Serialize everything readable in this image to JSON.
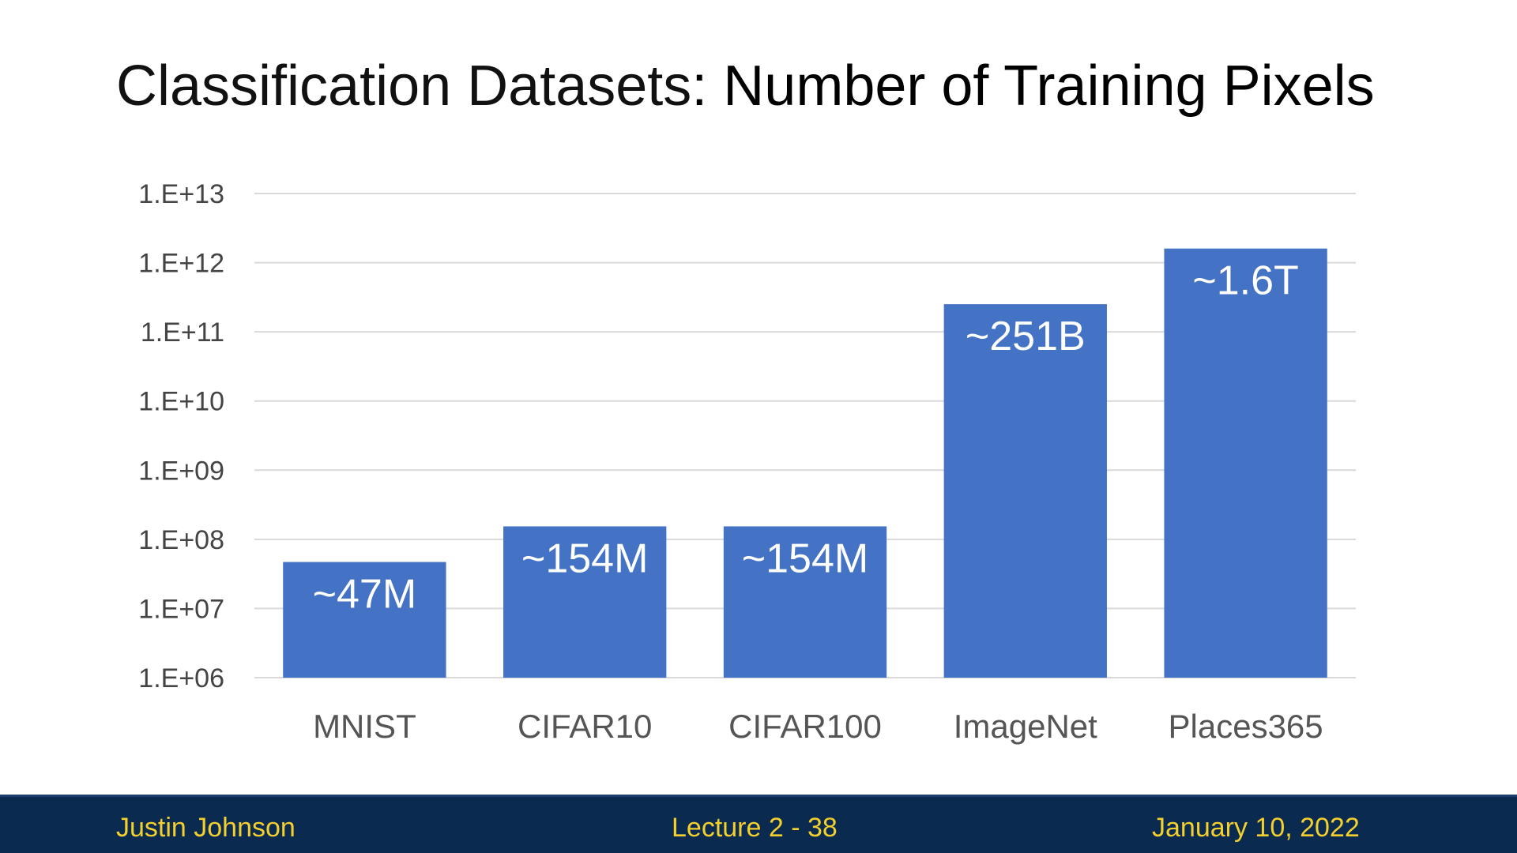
{
  "slide": {
    "title_part1": "Classification Datasets",
    "title_part2": ": Number of Training Pixels"
  },
  "footer": {
    "author": "Justin Johnson",
    "lecture": "Lecture 2 - 38",
    "date": "January 10, 2022"
  },
  "colors": {
    "bar": "#4472c4",
    "footer_bg": "#0b2a4f",
    "footer_text": "#f3d02e",
    "grid": "#d9d9d9"
  },
  "chart_data": {
    "type": "bar",
    "title": "Classification Datasets: Number of Training Pixels",
    "xlabel": "",
    "ylabel": "",
    "scale": "log10",
    "ylim": [
      1000000,
      10000000000000
    ],
    "yticks": [
      "1.E+06",
      "1.E+07",
      "1.E+08",
      "1.E+09",
      "1.E+10",
      "1.E+11",
      "1.E+12",
      "1.E+13"
    ],
    "categories": [
      "MNIST",
      "CIFAR10",
      "CIFAR100",
      "ImageNet",
      "Places365"
    ],
    "values": [
      47000000,
      154000000,
      154000000,
      251000000000,
      1600000000000
    ],
    "data_labels": [
      "~47M",
      "~154M",
      "~154M",
      "~251B",
      "~1.6T"
    ],
    "grid": true,
    "legend": "none"
  }
}
